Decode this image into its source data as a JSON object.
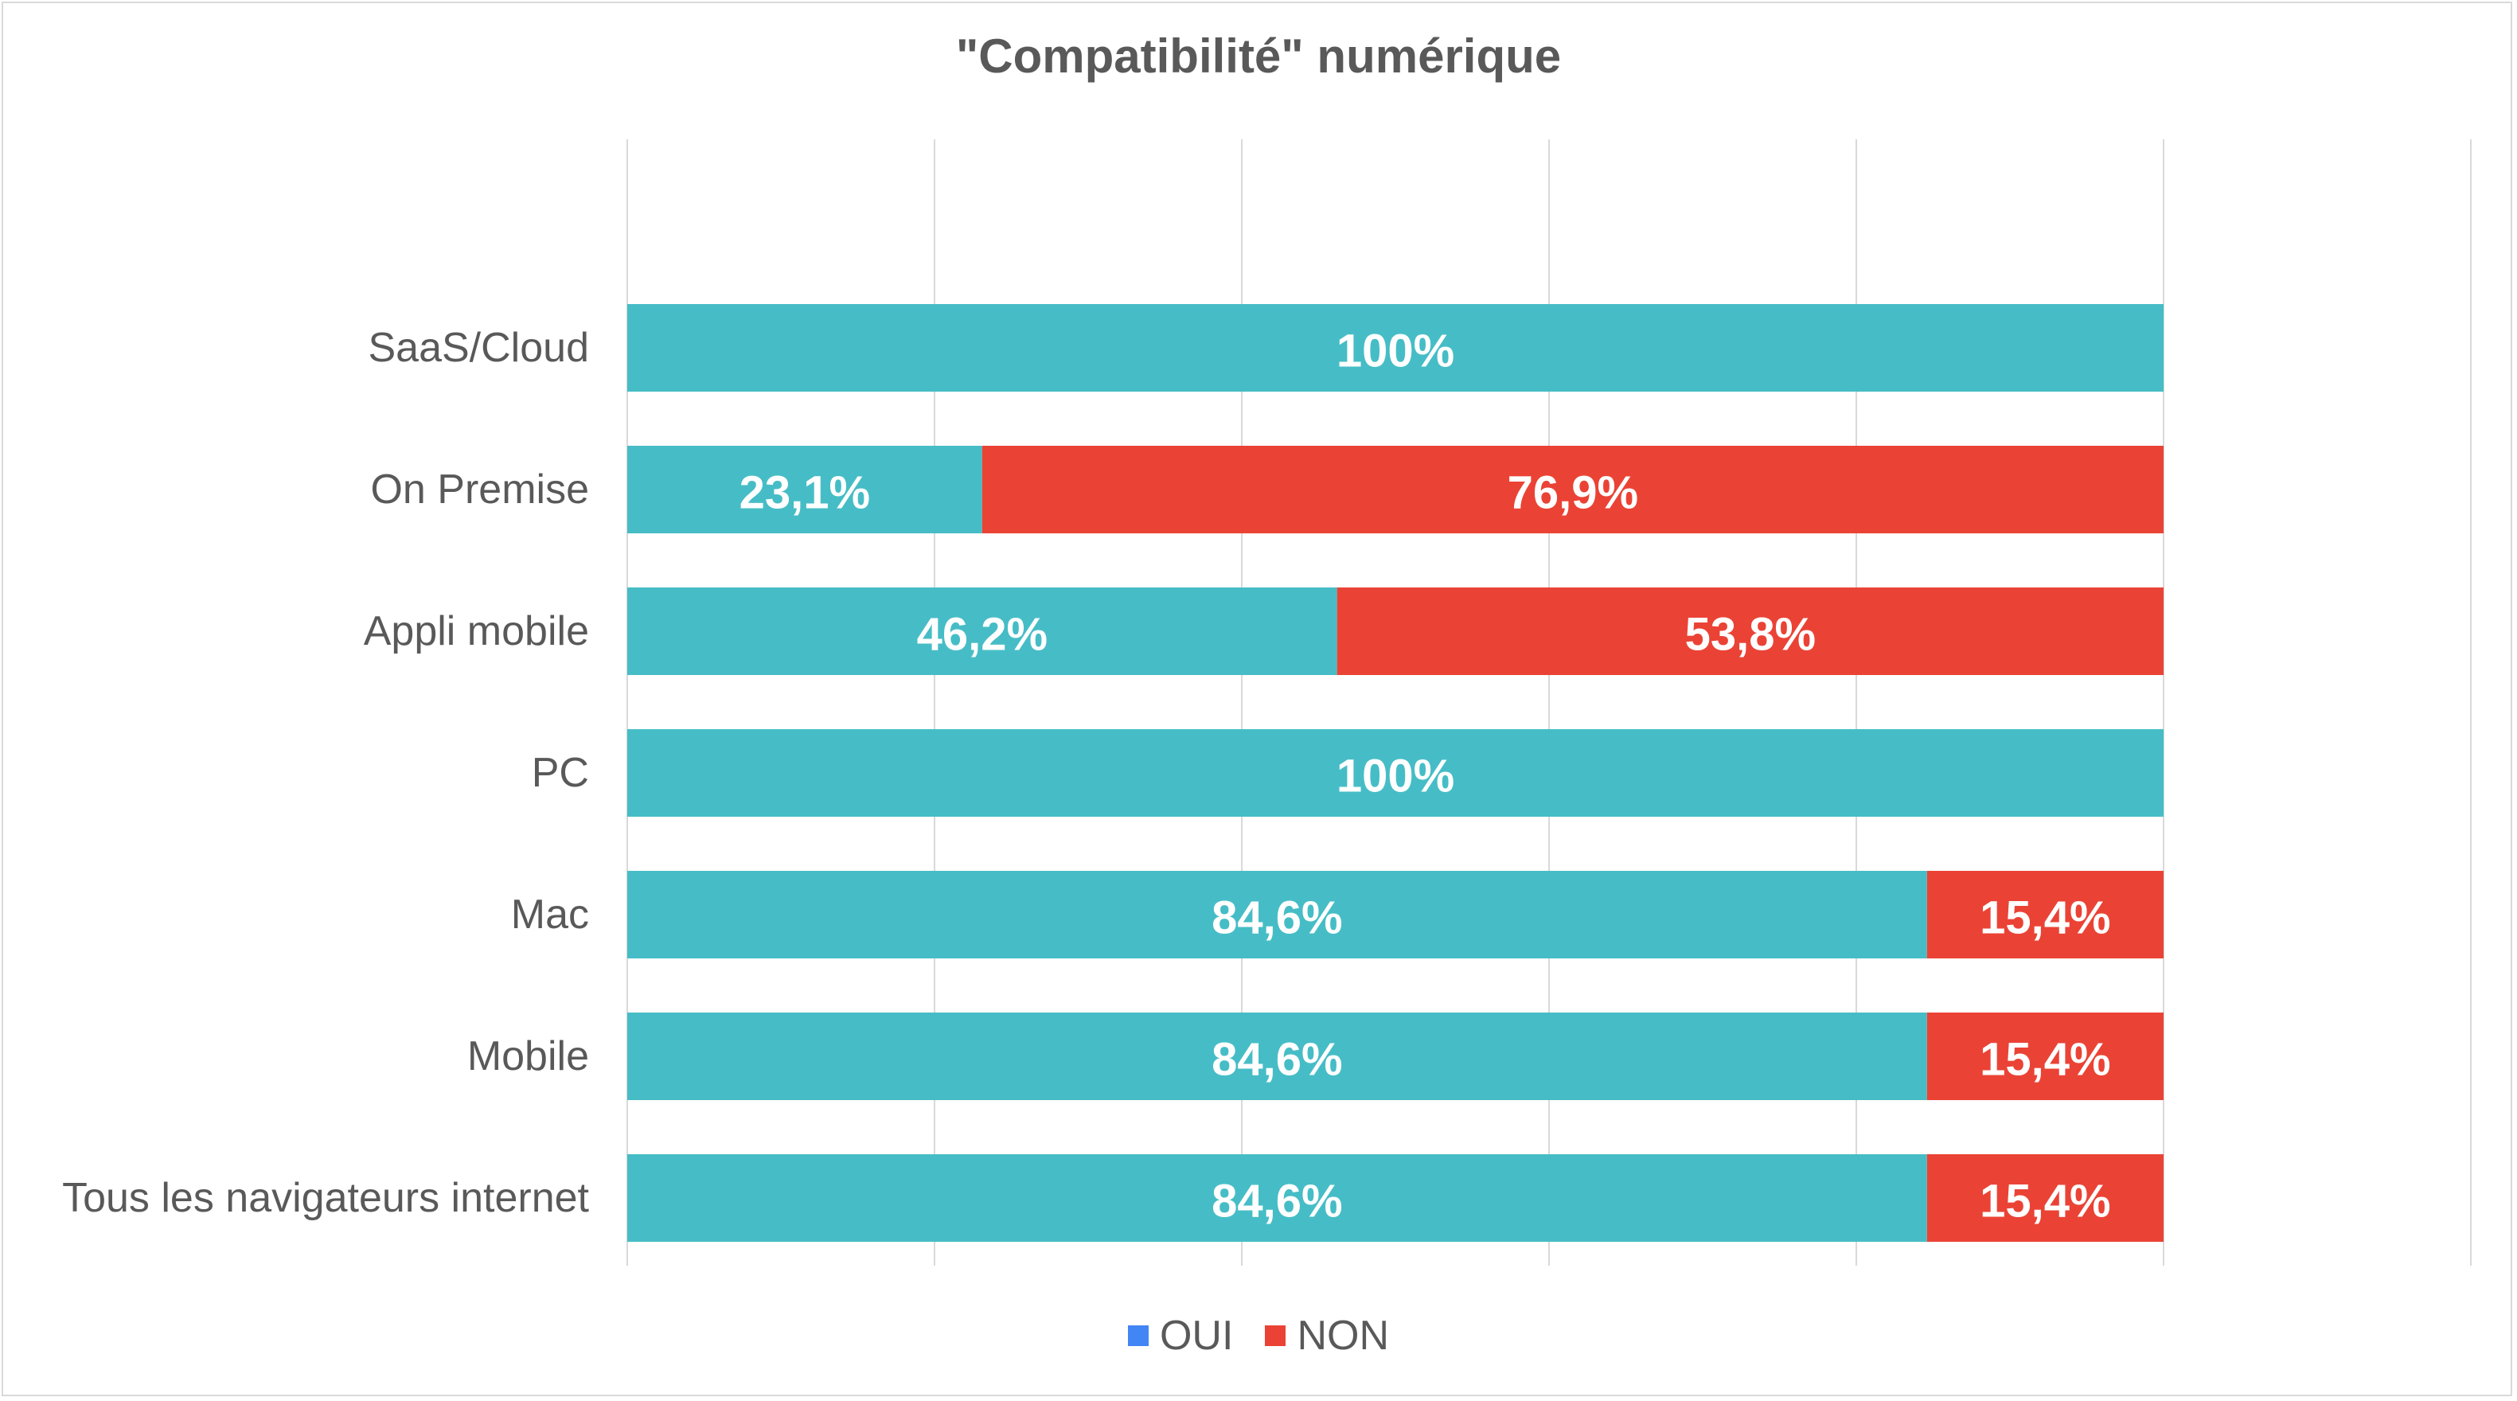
{
  "chart_data": {
    "type": "bar",
    "orientation": "horizontal",
    "stacked": true,
    "title": "\"Compatibilité\" numérique",
    "categories": [
      "SaaS/Cloud",
      "On Premise",
      "Appli mobile",
      "PC",
      "Mac",
      "Mobile",
      "Tous les navigateurs internet"
    ],
    "series": [
      {
        "name": "OUI",
        "color": "#46bdc6",
        "legend_color": "#4285f4",
        "values": [
          100,
          23.1,
          46.2,
          100,
          84.6,
          84.6,
          84.6
        ],
        "labels": [
          "100%",
          "23,1%",
          "46,2%",
          "100%",
          "84,6%",
          "84,6%",
          "84,6%"
        ]
      },
      {
        "name": "NON",
        "color": "#ea4335",
        "legend_color": "#ea4335",
        "values": [
          0,
          76.9,
          53.8,
          0,
          15.4,
          15.4,
          15.4
        ],
        "labels": [
          "",
          "76,9%",
          "53,8%",
          "",
          "15,4%",
          "15,4%",
          "15,4%"
        ]
      }
    ],
    "xlim": [
      0,
      120
    ],
    "grid": true,
    "legend_position": "bottom"
  }
}
